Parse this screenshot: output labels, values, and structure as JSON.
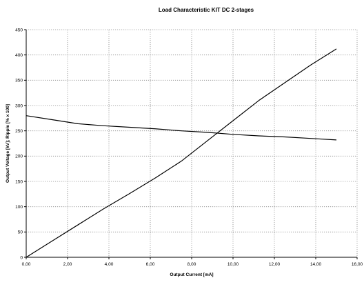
{
  "chart_data": {
    "type": "line",
    "title": "Load Characteristic KIT DC 2-stages",
    "xlabel": "Output Current [mA]",
    "ylabel": "Output Voltage [kV]; Ripple [% x 100]",
    "xlim": [
      0,
      16
    ],
    "ylim": [
      0,
      450
    ],
    "x_ticks": [
      0,
      2,
      4,
      6,
      8,
      10,
      12,
      14,
      16
    ],
    "x_tick_labels": [
      "0,00",
      "2,00",
      "4,00",
      "6,00",
      "8,00",
      "10,00",
      "12,00",
      "14,00",
      "16,00"
    ],
    "y_ticks": [
      0,
      50,
      100,
      150,
      200,
      250,
      300,
      350,
      400,
      450
    ],
    "y_tick_labels": [
      "0",
      "50",
      "100",
      "150",
      "200",
      "250",
      "300",
      "350",
      "400",
      "450"
    ],
    "grid": true,
    "series": [
      {
        "color": "#000000",
        "x": [
          0,
          1.25,
          2.5,
          3.75,
          5,
          6.25,
          7.5,
          8.75,
          10,
          11.25,
          12.5,
          13.75,
          15
        ],
        "y": [
          280,
          272,
          264,
          260,
          257,
          254,
          250,
          247,
          243,
          240,
          238,
          235,
          232
        ]
      },
      {
        "color": "#000000",
        "x": [
          0,
          1.25,
          2.5,
          3.75,
          5,
          6.25,
          7.5,
          8.75,
          10,
          11.25,
          12.5,
          13.75,
          15
        ],
        "y": [
          0,
          32,
          64,
          96,
          126,
          157,
          190,
          230,
          270,
          310,
          345,
          380,
          412
        ]
      }
    ]
  }
}
